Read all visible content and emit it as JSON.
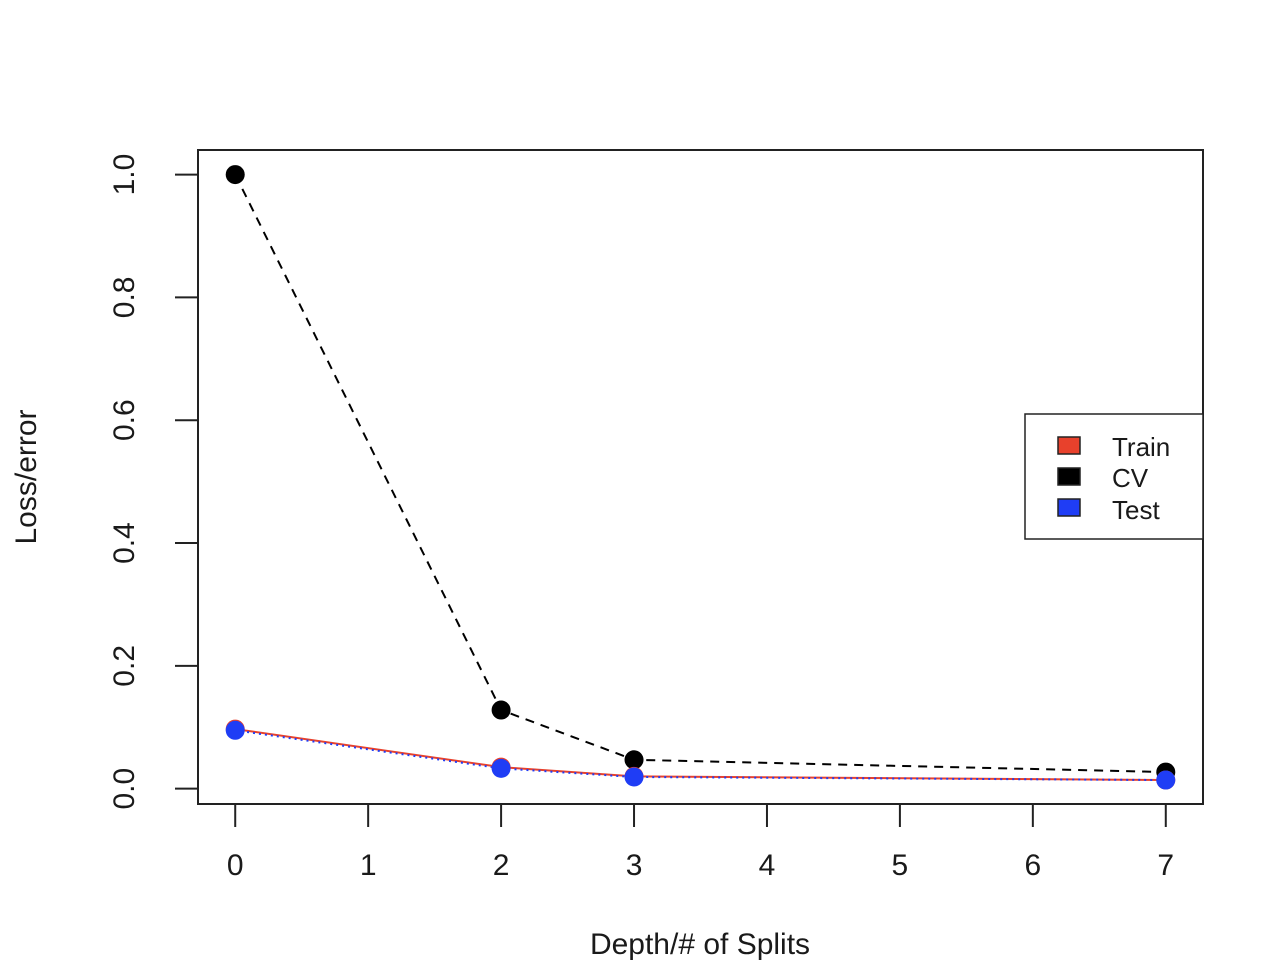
{
  "chart_data": {
    "type": "line",
    "title": "",
    "xlabel": "Depth/# of Splits",
    "ylabel": "Loss/error",
    "x": [
      0,
      2,
      3,
      7
    ],
    "xlim": [
      -0.28,
      7.28
    ],
    "ylim": [
      -0.025,
      1.04
    ],
    "xticks": [
      0,
      1,
      2,
      3,
      4,
      5,
      6,
      7
    ],
    "xtick_labels": [
      "0",
      "1",
      "2",
      "3",
      "4",
      "5",
      "6",
      "7"
    ],
    "yticks": [
      0.0,
      0.2,
      0.4,
      0.6,
      0.8,
      1.0
    ],
    "ytick_labels": [
      "0.0",
      "0.2",
      "0.4",
      "0.6",
      "0.8",
      "1.0"
    ],
    "grid": false,
    "legend_position": "right",
    "series": [
      {
        "name": "Train",
        "values": [
          0.097,
          0.035,
          0.02,
          0.014
        ],
        "color": "#e8412c",
        "line": "solid"
      },
      {
        "name": "CV",
        "values": [
          1.0,
          0.128,
          0.047,
          0.027
        ],
        "color": "#000000",
        "line": "dashed"
      },
      {
        "name": "Test",
        "values": [
          0.095,
          0.033,
          0.019,
          0.014
        ],
        "color": "#1f3df5",
        "line": "dotted"
      }
    ]
  }
}
